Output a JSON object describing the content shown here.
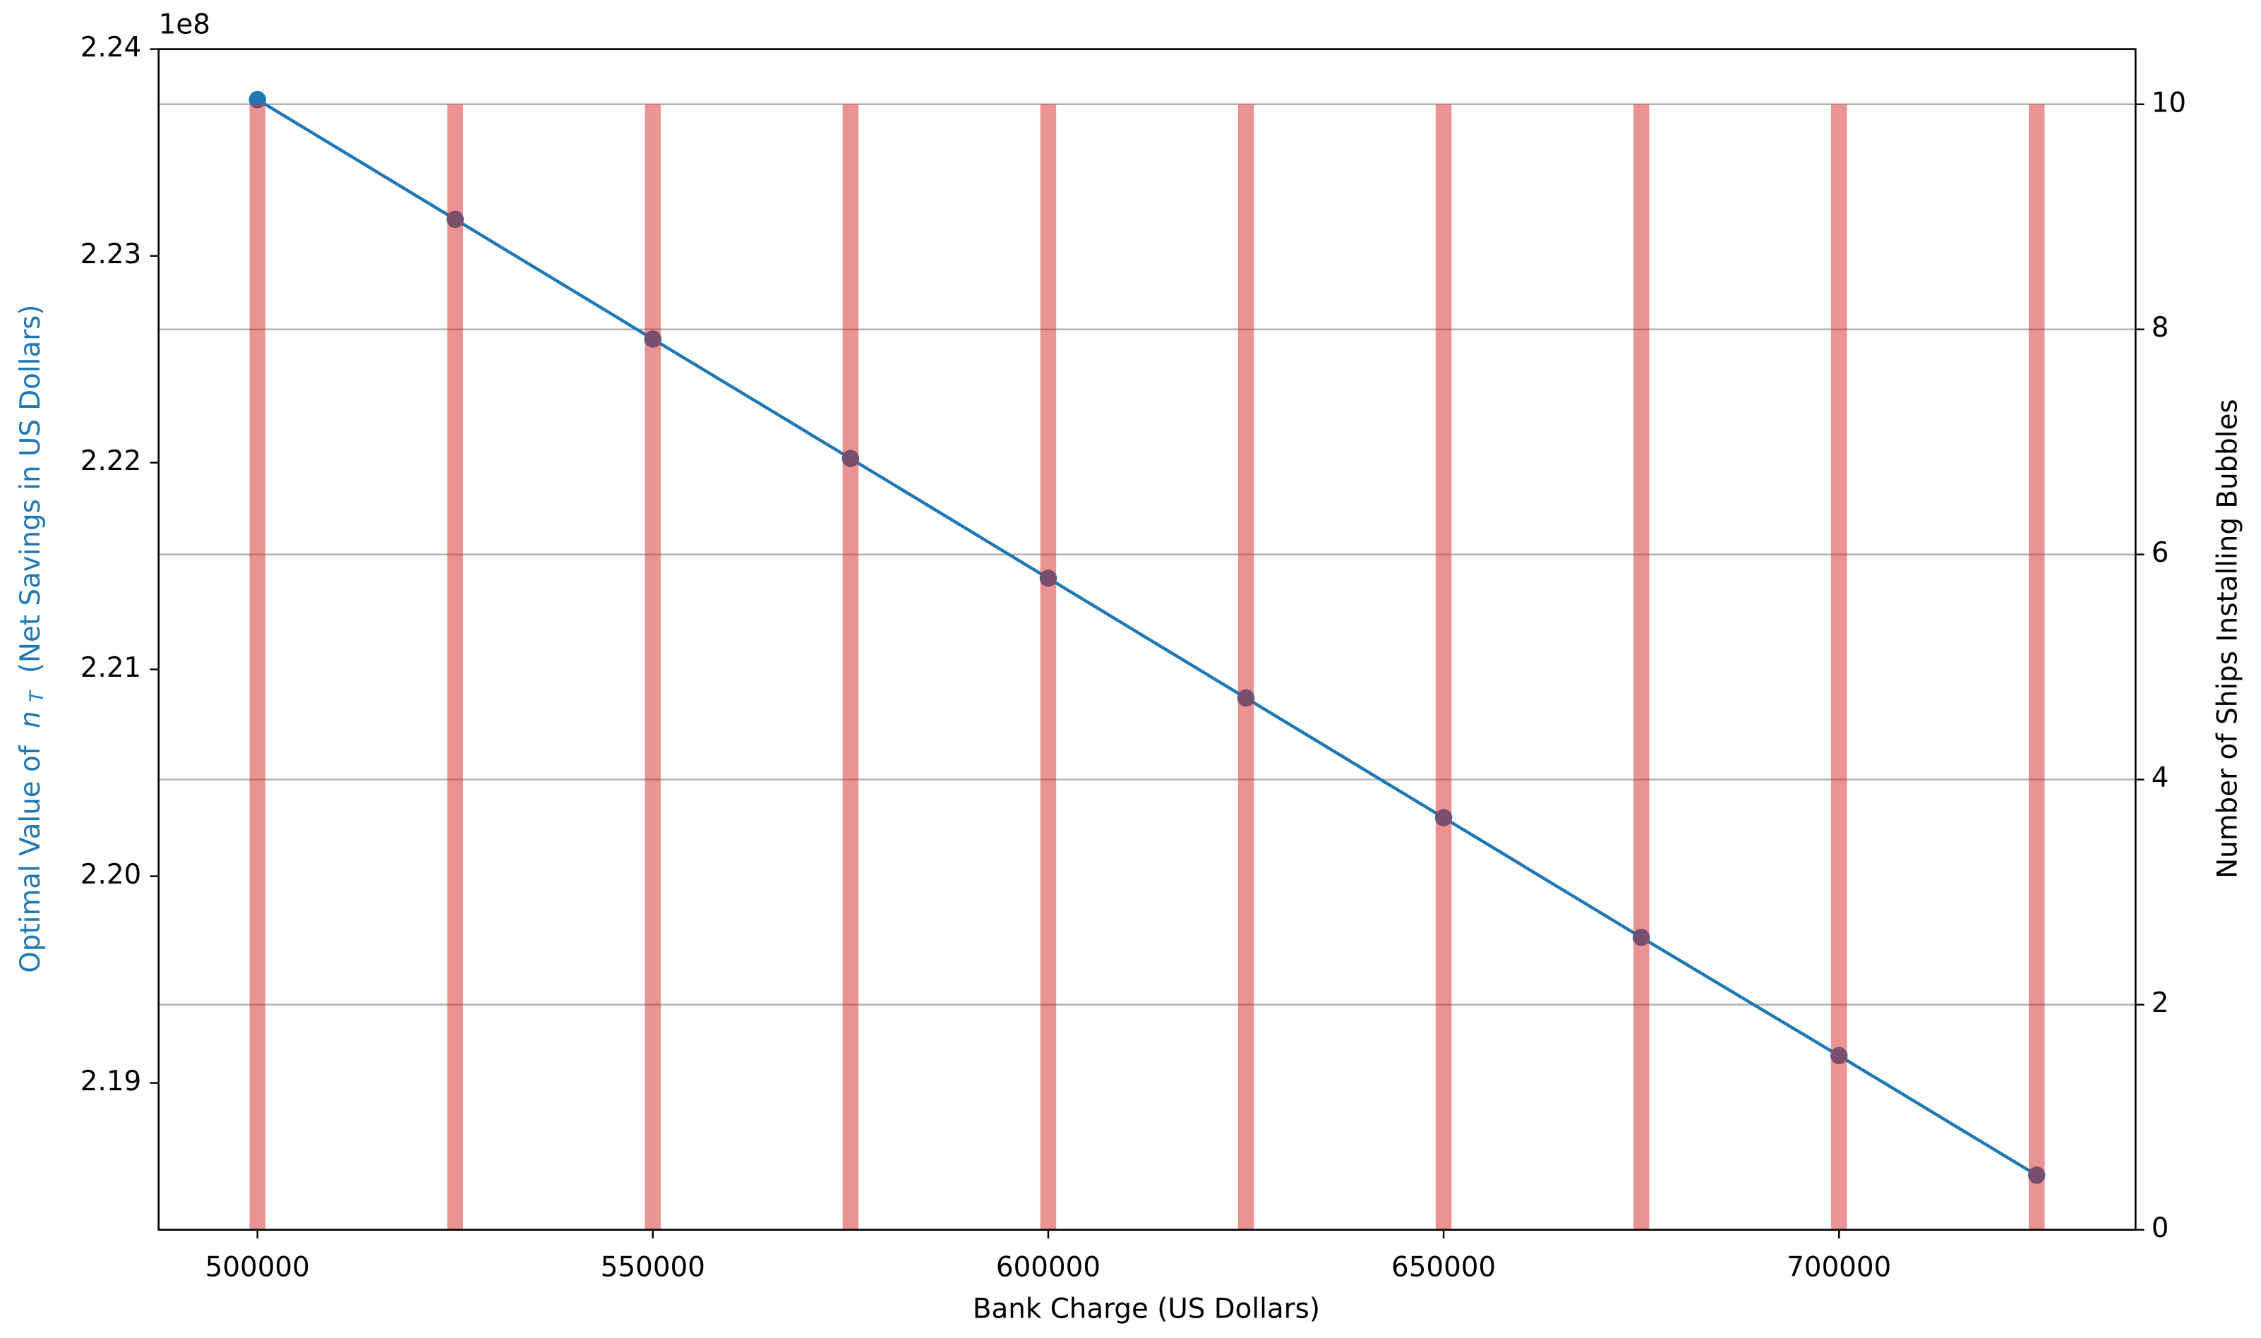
{
  "chart_data": {
    "type": "line",
    "x_label": "Bank Charge (US Dollars)",
    "y_label": [
      "Optimal Value of",
      "n",
      "T",
      "(Net Savings in US Dollars)"
    ],
    "y_offset_label": "1e8",
    "y2_label": "Number of Ships Installing Bubbles",
    "x": [
      500000,
      525000,
      550000,
      575000,
      600000,
      625000,
      650000,
      675000,
      700000,
      725000
    ],
    "series": [
      {
        "type": "line",
        "color": "#1f77b4",
        "axis": "y",
        "values": [
          2.23756,
          2.23177,
          2.22598,
          2.2202,
          2.21441,
          2.20862,
          2.20283,
          2.19704,
          2.19132,
          2.18554
        ]
      },
      {
        "type": "bar",
        "color": "#d62728",
        "opacity": 0.5,
        "axis": "y2",
        "values": [
          10,
          10,
          10,
          10,
          10,
          10,
          10,
          10,
          10,
          10
        ]
      }
    ],
    "xlim": [
      487500,
      737500
    ],
    "xticks": [
      500000,
      550000,
      600000,
      650000,
      700000
    ],
    "ylim": [
      2.1829,
      2.24
    ],
    "yticks": [
      2.19,
      {
        "value": 2.2,
        "label": "2.20"
      },
      2.21,
      2.22,
      2.23,
      2.24
    ],
    "y_color": "#1f77b4",
    "y2lim": [
      0,
      10.49
    ],
    "y2ticks": [
      0,
      2,
      4,
      6,
      8,
      10
    ],
    "y2_color": "#d62728",
    "grid": true,
    "grid_axis": "y2"
  }
}
